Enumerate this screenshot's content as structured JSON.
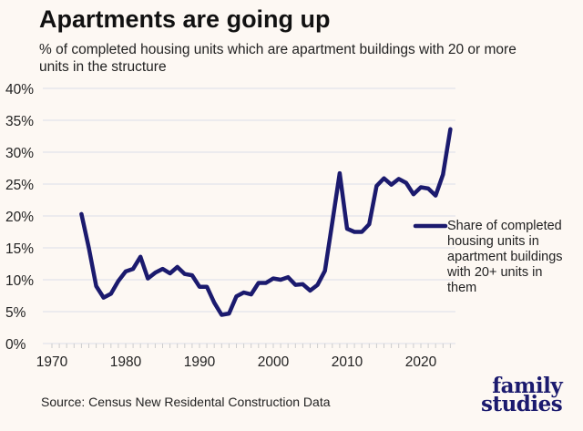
{
  "title": "Apartments are going up",
  "subtitle": "% of completed housing units which are apartment buildings with 20 or more units in the structure",
  "source": "Source: Census New Residental Construction Data",
  "logo": {
    "line1": "family",
    "line2": "studies"
  },
  "colors": {
    "line": "#1b1a6e",
    "background": "#fdf8f3",
    "grid": "#e3e3ea"
  },
  "chart_data": {
    "type": "line",
    "title": "Apartments are going up",
    "xlabel": "",
    "ylabel": "",
    "xlim": [
      1970,
      2024
    ],
    "ylim": [
      0,
      40
    ],
    "grid": true,
    "legend_placement": "right",
    "x_ticks": [
      "1970",
      "1980",
      "1990",
      "2000",
      "2010",
      "2020"
    ],
    "y_ticks": [
      "0%",
      "5%",
      "10%",
      "15%",
      "20%",
      "25%",
      "30%",
      "35%",
      "40%"
    ],
    "series": [
      {
        "name": "Share of completed housing units in apartment buildings with 20+ units in them",
        "x": [
          1974,
          1975,
          1976,
          1977,
          1978,
          1979,
          1980,
          1981,
          1982,
          1983,
          1984,
          1985,
          1986,
          1987,
          1988,
          1989,
          1990,
          1991,
          1992,
          1993,
          1994,
          1995,
          1996,
          1997,
          1998,
          1999,
          2000,
          2001,
          2002,
          2003,
          2004,
          2005,
          2006,
          2007,
          2008,
          2009,
          2010,
          2011,
          2012,
          2013,
          2014,
          2015,
          2016,
          2017,
          2018,
          2019,
          2020,
          2021,
          2022,
          2023,
          2024
        ],
        "values": [
          20.3,
          15.0,
          9.0,
          7.2,
          7.8,
          9.8,
          11.3,
          11.7,
          13.6,
          10.2,
          11.1,
          11.7,
          11.0,
          12.0,
          10.9,
          10.7,
          8.9,
          8.9,
          6.4,
          4.5,
          4.7,
          7.4,
          8.0,
          7.7,
          9.5,
          9.5,
          10.2,
          10.0,
          10.4,
          9.2,
          9.3,
          8.3,
          9.2,
          11.4,
          19.0,
          26.7,
          18.0,
          17.5,
          17.5,
          18.7,
          24.7,
          25.9,
          24.9,
          25.8,
          25.2,
          23.4,
          24.5,
          24.3,
          23.2,
          26.5,
          33.6
        ]
      }
    ]
  }
}
